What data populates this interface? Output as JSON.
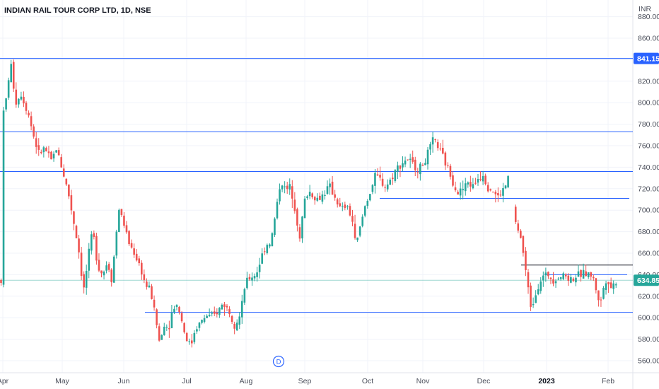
{
  "chart_data": {
    "type": "candlestick",
    "title": "INDIAN RAIL TOUR CORP LTD, 1D, NSE",
    "currency": "INR",
    "ylim": [
      552,
      878
    ],
    "y_ticks": [
      560,
      580,
      600,
      620,
      640,
      660,
      680,
      700,
      720,
      740,
      760,
      780,
      800,
      820,
      840,
      860,
      880
    ],
    "x_ticks": [
      {
        "label": "Apr",
        "t": 4,
        "bold": false
      },
      {
        "label": "May",
        "t": 88,
        "bold": false
      },
      {
        "label": "Jun",
        "t": 175,
        "bold": false
      },
      {
        "label": "Jul",
        "t": 264,
        "bold": false
      },
      {
        "label": "Aug",
        "t": 348,
        "bold": false
      },
      {
        "label": "Sep",
        "t": 431,
        "bold": false
      },
      {
        "label": "Oct",
        "t": 520,
        "bold": false
      },
      {
        "label": "Nov",
        "t": 598,
        "bold": false
      },
      {
        "label": "Dec",
        "t": 684,
        "bold": false
      },
      {
        "label": "2023",
        "t": 773,
        "bold": true
      },
      {
        "label": "Feb",
        "t": 860,
        "bold": false
      }
    ],
    "last_price": "634.85",
    "last_value": 634.85,
    "marked_level": "841.15",
    "marked_value": 841.15,
    "dividend_marker": {
      "label": "D",
      "t": 394
    },
    "colors": {
      "up": "#26a69a",
      "down": "#ef5350",
      "hline": "#2962ff",
      "black_line": "#131722",
      "last_price_bg": "#26a69a",
      "marked_bg": "#2962ff",
      "last_price_line": "#26a69a"
    },
    "hlines": [
      {
        "value": 841.15,
        "from": 0,
        "to": 895,
        "color": "#2962ff"
      },
      {
        "value": 773,
        "from": 0,
        "to": 895,
        "color": "#2962ff"
      },
      {
        "value": 736,
        "from": 0,
        "to": 895,
        "color": "#2962ff"
      },
      {
        "value": 711,
        "from": 537,
        "to": 890,
        "color": "#2962ff"
      },
      {
        "value": 605,
        "from": 205,
        "to": 895,
        "color": "#2962ff"
      },
      {
        "value": 649,
        "from": 737,
        "to": 895,
        "color": "#131722"
      },
      {
        "value": 640,
        "from": 770,
        "to": 887,
        "color": "#2962ff"
      }
    ],
    "ohlc_anchors": [
      {
        "t": 2,
        "c": 780
      },
      {
        "t": 8,
        "c": 800
      },
      {
        "t": 15,
        "c": 838
      },
      {
        "t": 22,
        "c": 800
      },
      {
        "t": 30,
        "c": 808
      },
      {
        "t": 40,
        "c": 790
      },
      {
        "t": 48,
        "c": 768
      },
      {
        "t": 55,
        "c": 752
      },
      {
        "t": 63,
        "c": 758
      },
      {
        "t": 72,
        "c": 745
      },
      {
        "t": 80,
        "c": 758
      },
      {
        "t": 88,
        "c": 738
      },
      {
        "t": 96,
        "c": 718
      },
      {
        "t": 104,
        "c": 690
      },
      {
        "t": 112,
        "c": 660
      },
      {
        "t": 118,
        "c": 624
      },
      {
        "t": 124,
        "c": 652
      },
      {
        "t": 131,
        "c": 682
      },
      {
        "t": 138,
        "c": 650
      },
      {
        "t": 145,
        "c": 640
      },
      {
        "t": 152,
        "c": 652
      },
      {
        "t": 158,
        "c": 636
      },
      {
        "t": 163,
        "c": 668
      },
      {
        "t": 168,
        "c": 702
      },
      {
        "t": 175,
        "c": 688
      },
      {
        "t": 182,
        "c": 670
      },
      {
        "t": 190,
        "c": 660
      },
      {
        "t": 198,
        "c": 648
      },
      {
        "t": 206,
        "c": 630
      },
      {
        "t": 213,
        "c": 625
      },
      {
        "t": 220,
        "c": 600
      },
      {
        "t": 226,
        "c": 575
      },
      {
        "t": 232,
        "c": 595
      },
      {
        "t": 238,
        "c": 590
      },
      {
        "t": 245,
        "c": 610
      },
      {
        "t": 252,
        "c": 612
      },
      {
        "t": 258,
        "c": 594
      },
      {
        "t": 264,
        "c": 580
      },
      {
        "t": 270,
        "c": 574
      },
      {
        "t": 276,
        "c": 590
      },
      {
        "t": 284,
        "c": 596
      },
      {
        "t": 292,
        "c": 602
      },
      {
        "t": 300,
        "c": 600
      },
      {
        "t": 308,
        "c": 606
      },
      {
        "t": 316,
        "c": 614
      },
      {
        "t": 324,
        "c": 606
      },
      {
        "t": 332,
        "c": 594
      },
      {
        "t": 340,
        "c": 602
      },
      {
        "t": 347,
        "c": 632
      },
      {
        "t": 355,
        "c": 638
      },
      {
        "t": 362,
        "c": 640
      },
      {
        "t": 369,
        "c": 655
      },
      {
        "t": 376,
        "c": 668
      },
      {
        "t": 383,
        "c": 670
      },
      {
        "t": 390,
        "c": 698
      },
      {
        "t": 397,
        "c": 728
      },
      {
        "t": 404,
        "c": 718
      },
      {
        "t": 411,
        "c": 722
      },
      {
        "t": 418,
        "c": 700
      },
      {
        "t": 424,
        "c": 672
      },
      {
        "t": 430,
        "c": 708
      },
      {
        "t": 437,
        "c": 718
      },
      {
        "t": 444,
        "c": 712
      },
      {
        "t": 451,
        "c": 710
      },
      {
        "t": 458,
        "c": 716
      },
      {
        "t": 466,
        "c": 722
      },
      {
        "t": 474,
        "c": 712
      },
      {
        "t": 482,
        "c": 700
      },
      {
        "t": 490,
        "c": 704
      },
      {
        "t": 498,
        "c": 692
      },
      {
        "t": 503,
        "c": 666
      },
      {
        "t": 510,
        "c": 686
      },
      {
        "t": 517,
        "c": 706
      },
      {
        "t": 524,
        "c": 718
      },
      {
        "t": 531,
        "c": 732
      },
      {
        "t": 538,
        "c": 728
      },
      {
        "t": 545,
        "c": 722
      },
      {
        "t": 552,
        "c": 728
      },
      {
        "t": 560,
        "c": 738
      },
      {
        "t": 568,
        "c": 744
      },
      {
        "t": 576,
        "c": 748
      },
      {
        "t": 584,
        "c": 742
      },
      {
        "t": 592,
        "c": 738
      },
      {
        "t": 600,
        "c": 744
      },
      {
        "t": 607,
        "c": 756
      },
      {
        "t": 614,
        "c": 766
      },
      {
        "t": 620,
        "c": 758
      },
      {
        "t": 627,
        "c": 748
      },
      {
        "t": 634,
        "c": 738
      },
      {
        "t": 641,
        "c": 726
      },
      {
        "t": 648,
        "c": 716
      },
      {
        "t": 655,
        "c": 720
      },
      {
        "t": 662,
        "c": 726
      },
      {
        "t": 669,
        "c": 722
      },
      {
        "t": 676,
        "c": 730
      },
      {
        "t": 683,
        "c": 734
      },
      {
        "t": 690,
        "c": 722
      },
      {
        "t": 697,
        "c": 718
      },
      {
        "t": 704,
        "c": 712
      },
      {
        "t": 711,
        "c": 718
      },
      {
        "t": 716,
        "c": 724
      },
      {
        "t": 721,
        "c": 736
      },
      {
        "t": 726,
        "c": 700
      },
      {
        "t": 731,
        "c": 682
      },
      {
        "t": 736,
        "c": 676
      },
      {
        "t": 741,
        "c": 656
      },
      {
        "t": 746,
        "c": 630
      },
      {
        "t": 751,
        "c": 610
      },
      {
        "t": 756,
        "c": 620
      },
      {
        "t": 762,
        "c": 632
      },
      {
        "t": 768,
        "c": 638
      },
      {
        "t": 775,
        "c": 640
      },
      {
        "t": 782,
        "c": 636
      },
      {
        "t": 790,
        "c": 638
      },
      {
        "t": 798,
        "c": 640
      },
      {
        "t": 806,
        "c": 636
      },
      {
        "t": 814,
        "c": 638
      },
      {
        "t": 822,
        "c": 640
      },
      {
        "t": 830,
        "c": 642
      },
      {
        "t": 838,
        "c": 638
      },
      {
        "t": 844,
        "c": 624
      },
      {
        "t": 849,
        "c": 612
      },
      {
        "t": 854,
        "c": 630
      },
      {
        "t": 859,
        "c": 638
      },
      {
        "t": 864,
        "c": 628
      },
      {
        "t": 869,
        "c": 632
      },
      {
        "t": 874,
        "c": 634.85
      }
    ],
    "gaps": [
      [
        721,
        726
      ]
    ],
    "x_min": 0,
    "x_max": 890
  }
}
